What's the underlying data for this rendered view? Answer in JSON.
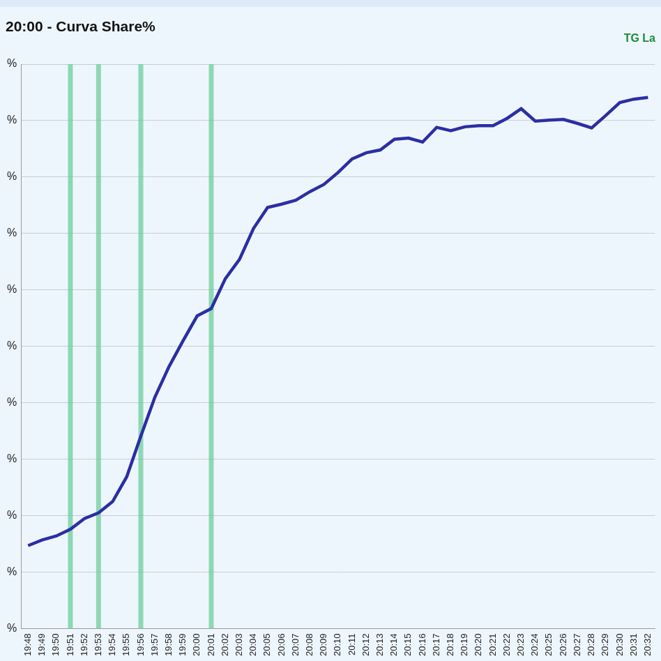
{
  "chart_data": {
    "type": "line",
    "title": "20:00 - Curva Share%",
    "annotation": "TG La",
    "categories": [
      "19:48",
      "19:49",
      "19:50",
      "19:51",
      "19:52",
      "19:53",
      "19:54",
      "19:55",
      "19:56",
      "19:57",
      "19:58",
      "19:59",
      "20:00",
      "20:01",
      "20:02",
      "20:03",
      "20:04",
      "20:05",
      "20:06",
      "20:07",
      "20:08",
      "20:09",
      "20:10",
      "20:11",
      "20:12",
      "20:13",
      "20:14",
      "20:15",
      "20:16",
      "20:17",
      "20:18",
      "20:19",
      "20:20",
      "20:21",
      "20:22",
      "20:23",
      "20:24",
      "20:25",
      "20:26",
      "20:27",
      "20:28",
      "20:29",
      "20:30",
      "20:31",
      "20:32"
    ],
    "values": [
      1.47,
      1.57,
      1.64,
      1.76,
      1.95,
      2.05,
      2.25,
      2.69,
      3.41,
      4.1,
      4.64,
      5.1,
      5.54,
      5.67,
      6.2,
      6.54,
      7.09,
      7.46,
      7.52,
      7.59,
      7.74,
      7.87,
      8.08,
      8.32,
      8.43,
      8.48,
      8.67,
      8.69,
      8.62,
      8.88,
      8.82,
      8.89,
      8.91,
      8.91,
      9.04,
      9.21,
      8.99,
      9.01,
      9.02,
      8.95,
      8.87,
      9.09,
      9.32,
      9.38,
      9.41
    ],
    "color": "#2b2fa3",
    "highlights": [
      "19:51",
      "19:53",
      "19:56",
      "20:01"
    ],
    "ylim": [
      0,
      10
    ],
    "yticks": [
      {
        "value": 0,
        "label": "%"
      },
      {
        "value": 1,
        "label": "%"
      },
      {
        "value": 2,
        "label": "%"
      },
      {
        "value": 3,
        "label": "%"
      },
      {
        "value": 4,
        "label": "%"
      },
      {
        "value": 5,
        "label": "%"
      },
      {
        "value": 6,
        "label": "%"
      },
      {
        "value": 7,
        "label": "%"
      },
      {
        "value": 8,
        "label": "%"
      },
      {
        "value": 9,
        "label": "%"
      },
      {
        "value": 10,
        "label": "%"
      }
    ],
    "grid": true
  }
}
